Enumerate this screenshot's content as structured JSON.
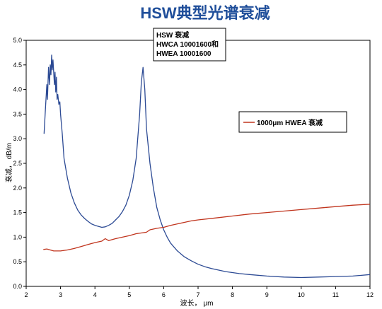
{
  "chart_data": {
    "type": "line",
    "title": "HSW典型光谱衰减",
    "xlabel": "波长， μm",
    "ylabel": "衰减， dB/m",
    "xlim": [
      2,
      12
    ],
    "ylim": [
      0,
      5
    ],
    "xticks": [
      "2",
      "3",
      "4",
      "5",
      "6",
      "7",
      "8",
      "9",
      "10",
      "11",
      "12"
    ],
    "yticks": [
      "0.0",
      "0.5",
      "1.0",
      "1.5",
      "2.0",
      "2.5",
      "3.0",
      "3.5",
      "4.0",
      "4.5",
      "5.0"
    ],
    "grid": false,
    "annotation": [
      "HSW 衰减",
      "HWCA 10001600和",
      "HWEA 10001600"
    ],
    "legend": {
      "label": "1000μm HWEA 衰减",
      "placement": "right"
    },
    "series": [
      {
        "name": "HSW 衰减 HWCA 10001600和 HWEA 10001600",
        "color": "#2c4a94",
        "x": [
          2.52,
          2.56,
          2.6,
          2.62,
          2.65,
          2.68,
          2.7,
          2.72,
          2.74,
          2.76,
          2.78,
          2.8,
          2.82,
          2.84,
          2.86,
          2.88,
          2.9,
          2.92,
          2.95,
          2.98,
          3.0,
          3.05,
          3.1,
          3.2,
          3.3,
          3.4,
          3.5,
          3.6,
          3.7,
          3.8,
          3.9,
          4.0,
          4.1,
          4.2,
          4.3,
          4.4,
          4.5,
          4.6,
          4.7,
          4.8,
          4.9,
          5.0,
          5.1,
          5.2,
          5.3,
          5.35,
          5.4,
          5.45,
          5.5,
          5.6,
          5.7,
          5.8,
          5.9,
          6.0,
          6.1,
          6.2,
          6.4,
          6.6,
          6.8,
          7.0,
          7.2,
          7.4,
          7.6,
          7.8,
          8.0,
          8.2,
          8.5,
          9.0,
          9.5,
          10.0,
          10.5,
          11.0,
          11.5,
          12.0
        ],
        "values": [
          3.1,
          3.6,
          4.1,
          3.8,
          4.45,
          4.1,
          4.5,
          4.3,
          4.7,
          4.4,
          4.6,
          4.35,
          4.1,
          4.35,
          3.95,
          4.25,
          3.8,
          3.9,
          3.7,
          3.75,
          3.5,
          3.1,
          2.6,
          2.2,
          1.9,
          1.7,
          1.55,
          1.45,
          1.38,
          1.32,
          1.27,
          1.24,
          1.22,
          1.2,
          1.21,
          1.24,
          1.28,
          1.35,
          1.42,
          1.52,
          1.65,
          1.85,
          2.15,
          2.6,
          3.5,
          4.15,
          4.45,
          4.0,
          3.2,
          2.5,
          2.0,
          1.6,
          1.35,
          1.15,
          1.0,
          0.88,
          0.72,
          0.6,
          0.52,
          0.45,
          0.4,
          0.36,
          0.33,
          0.3,
          0.28,
          0.26,
          0.24,
          0.21,
          0.19,
          0.18,
          0.19,
          0.2,
          0.21,
          0.24
        ]
      },
      {
        "name": "1000μm HWEA 衰减",
        "color": "#c0341d",
        "x": [
          2.5,
          2.6,
          2.7,
          2.8,
          2.9,
          3.0,
          3.2,
          3.4,
          3.6,
          3.8,
          4.0,
          4.2,
          4.3,
          4.4,
          4.6,
          4.8,
          5.0,
          5.2,
          5.4,
          5.5,
          5.6,
          5.8,
          6.0,
          6.2,
          6.4,
          6.6,
          6.8,
          7.0,
          7.5,
          8.0,
          8.5,
          9.0,
          9.5,
          10.0,
          10.5,
          11.0,
          11.5,
          12.0
        ],
        "values": [
          0.75,
          0.76,
          0.74,
          0.72,
          0.72,
          0.72,
          0.74,
          0.77,
          0.81,
          0.85,
          0.89,
          0.92,
          0.97,
          0.93,
          0.97,
          1.0,
          1.03,
          1.07,
          1.09,
          1.1,
          1.15,
          1.18,
          1.2,
          1.24,
          1.27,
          1.3,
          1.33,
          1.35,
          1.39,
          1.43,
          1.47,
          1.5,
          1.53,
          1.56,
          1.59,
          1.62,
          1.65,
          1.67
        ]
      }
    ]
  }
}
